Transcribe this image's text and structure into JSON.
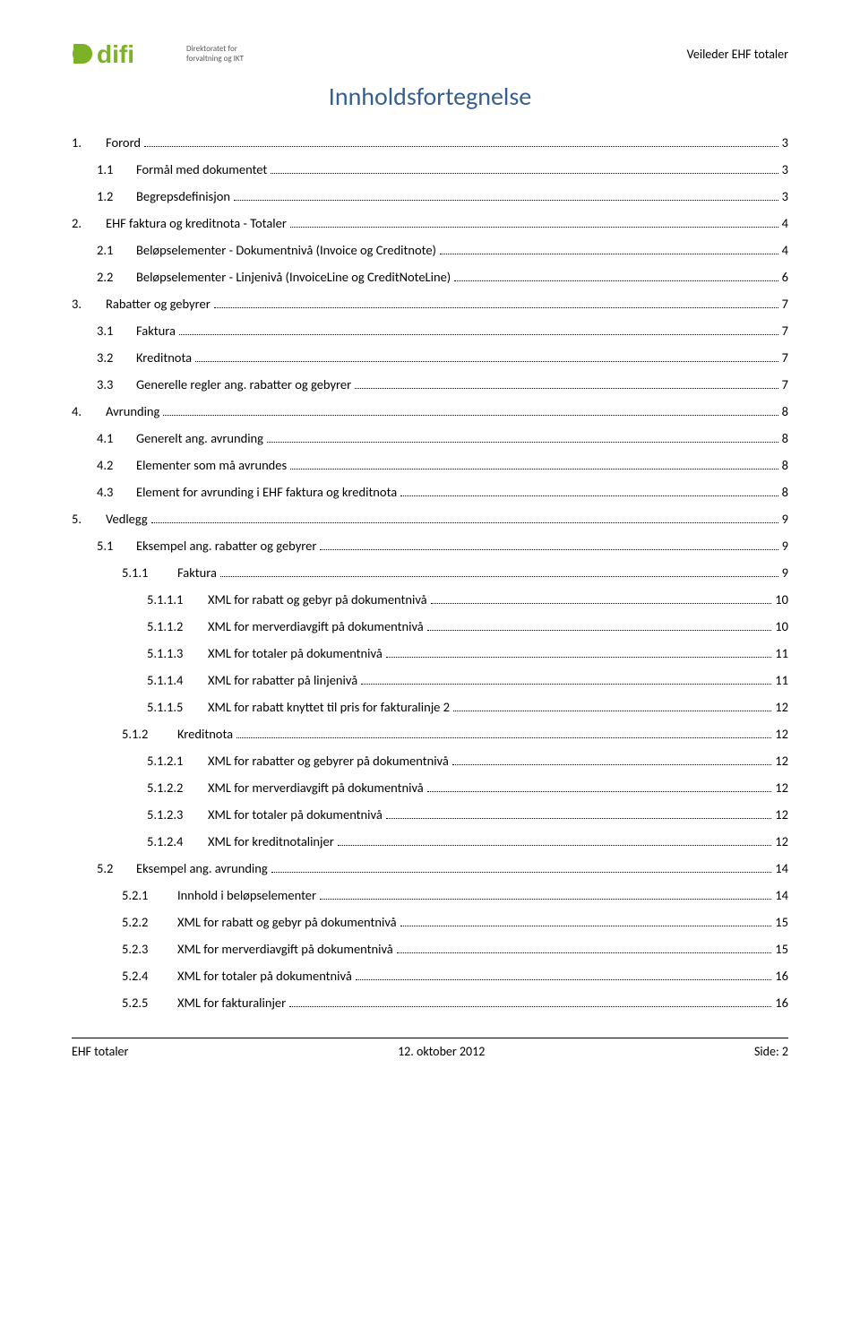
{
  "header": {
    "logo_sub1": "Direktoratet for",
    "logo_sub2": "forvaltning og IKT",
    "right": "Veileder EHF totaler"
  },
  "title": "Innholdsfortegnelse",
  "colors": {
    "title": "#365f91",
    "logo_green": "#7cb227",
    "logo_orange": "#e8702a",
    "logo_text": "#585858"
  },
  "toc": [
    {
      "num": "1.",
      "label": "Forord",
      "page": "3",
      "indent": 0
    },
    {
      "num": "1.1",
      "label": "Formål med dokumentet",
      "page": "3",
      "indent": 1
    },
    {
      "num": "1.2",
      "label": "Begrepsdefinisjon",
      "page": "3",
      "indent": 1
    },
    {
      "num": "2.",
      "label": "EHF faktura og kreditnota  - Totaler",
      "page": "4",
      "indent": 0
    },
    {
      "num": "2.1",
      "label": "Beløpselementer - Dokumentnivå (Invoice og Creditnote)",
      "page": "4",
      "indent": 1
    },
    {
      "num": "2.2",
      "label": "Beløpselementer - Linjenivå  (InvoiceLine og CreditNoteLine)",
      "page": "6",
      "indent": 1
    },
    {
      "num": "3.",
      "label": "Rabatter og gebyrer",
      "page": "7",
      "indent": 0
    },
    {
      "num": "3.1",
      "label": "Faktura",
      "page": "7",
      "indent": 1
    },
    {
      "num": "3.2",
      "label": "Kreditnota",
      "page": "7",
      "indent": 1
    },
    {
      "num": "3.3",
      "label": "Generelle regler ang. rabatter og gebyrer",
      "page": "7",
      "indent": 1
    },
    {
      "num": "4.",
      "label": "Avrunding",
      "page": "8",
      "indent": 0
    },
    {
      "num": "4.1",
      "label": "Generelt ang. avrunding",
      "page": "8",
      "indent": 1
    },
    {
      "num": "4.2",
      "label": "Elementer som må avrundes",
      "page": "8",
      "indent": 1
    },
    {
      "num": "4.3",
      "label": "Element for avrunding i  EHF faktura og kreditnota",
      "page": "8",
      "indent": 1
    },
    {
      "num": "5.",
      "label": "Vedlegg",
      "page": "9",
      "indent": 0
    },
    {
      "num": "5.1",
      "label": "Eksempel ang. rabatter og gebyrer",
      "page": "9",
      "indent": 1
    },
    {
      "num": "5.1.1",
      "label": "Faktura",
      "page": "9",
      "indent": 2
    },
    {
      "num": "5.1.1.1",
      "label": "XML for rabatt og gebyr  på dokumentnivå",
      "page": "10",
      "indent": 3
    },
    {
      "num": "5.1.1.2",
      "label": "XML for merverdiavgift på dokumentnivå",
      "page": "10",
      "indent": 3
    },
    {
      "num": "5.1.1.3",
      "label": "XML for totaler på dokumentnivå",
      "page": "11",
      "indent": 3
    },
    {
      "num": "5.1.1.4",
      "label": "XML for rabatter på linjenivå",
      "page": "11",
      "indent": 3
    },
    {
      "num": "5.1.1.5",
      "label": "XML for rabatt knyttet til pris for fakturalinje 2",
      "page": "12",
      "indent": 3
    },
    {
      "num": "5.1.2",
      "label": "Kreditnota",
      "page": "12",
      "indent": 2
    },
    {
      "num": "5.1.2.1",
      "label": "XML for rabatter og gebyrer på dokumentnivå",
      "page": "12",
      "indent": 3
    },
    {
      "num": "5.1.2.2",
      "label": "XML for merverdiavgift på dokumentnivå",
      "page": "12",
      "indent": 3
    },
    {
      "num": "5.1.2.3",
      "label": "XML for totaler på dokumentnivå",
      "page": "12",
      "indent": 3
    },
    {
      "num": "5.1.2.4",
      "label": "XML for kreditnotalinjer",
      "page": "12",
      "indent": 3
    },
    {
      "num": "5.2",
      "label": "Eksempel ang. avrunding",
      "page": "14",
      "indent": 1
    },
    {
      "num": "5.2.1",
      "label": "Innhold i beløpselementer",
      "page": "14",
      "indent": 2
    },
    {
      "num": "5.2.2",
      "label": "XML for rabatt og gebyr på dokumentnivå",
      "page": "15",
      "indent": 2
    },
    {
      "num": "5.2.3",
      "label": "XML for merverdiavgift på dokumentnivå",
      "page": "15",
      "indent": 2
    },
    {
      "num": "5.2.4",
      "label": "XML for totaler på dokumentnivå",
      "page": "16",
      "indent": 2
    },
    {
      "num": "5.2.5",
      "label": "XML for fakturalinjer",
      "page": "16",
      "indent": 2
    }
  ],
  "footer": {
    "left": "EHF totaler",
    "center": "12. oktober 2012",
    "right": "Side: 2"
  }
}
